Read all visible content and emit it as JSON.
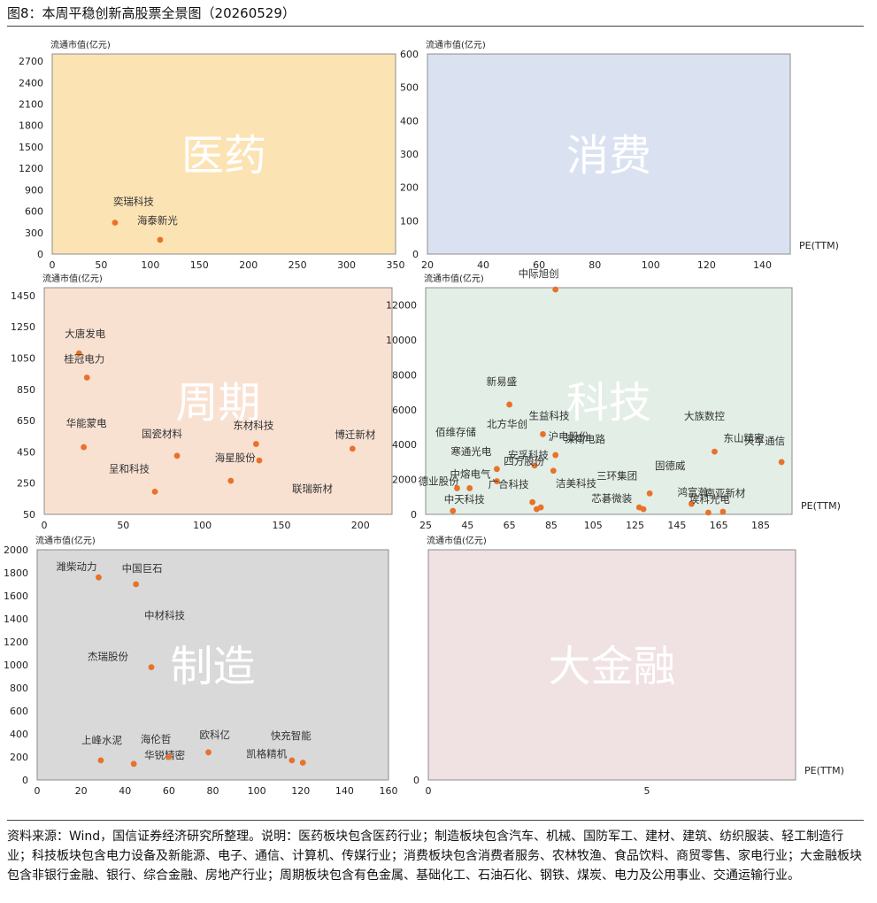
{
  "figure_title": "图8：本周平稳创新高股票全景图（20260529）",
  "source_note": "资料来源：Wind，国信证券经济研究所整理。说明：医药板块包含医药行业；制造板块包含汽车、机械、国防军工、建材、建筑、纺织服装、轻工制造行业；科技板块包含电力设备及新能源、电子、通信、计算机、传媒行业；消费板块包含消费者服务、农林牧渔、食品饮料、商贸零售、家电行业；大金融板块包含非银行金融、银行、综合金融、房地产行业；周期板块包含有色金属、基础化工、石油石化、钢铁、煤炭、电力及公用事业、交通运输行业。",
  "colors": {
    "marker": "#E8722A",
    "axis": "#555555",
    "watermark": "#ffffff"
  },
  "chart_data": [
    {
      "type": "scatter",
      "sector": "医药",
      "ylabel": "流通市值(亿元)",
      "xlabel": "",
      "bg": "#FCE3B4",
      "xlim": [
        0,
        350
      ],
      "xticks": [
        0,
        50,
        100,
        150,
        200,
        250,
        300,
        350
      ],
      "ylim": [
        0,
        2800
      ],
      "yticks": [
        0,
        300,
        600,
        900,
        1200,
        1500,
        1800,
        2100,
        2400,
        2700
      ],
      "points": [
        {
          "name": "奕瑞科技",
          "x": 64,
          "y": 440
        },
        {
          "name": "海泰新光",
          "x": 110,
          "y": 200
        }
      ]
    },
    {
      "type": "scatter",
      "sector": "消费",
      "ylabel": "流通市值(亿元)",
      "xlabel": "PE(TTM)",
      "bg": "#DAE2F2",
      "xlim": [
        20,
        150
      ],
      "xticks": [
        20,
        40,
        60,
        80,
        100,
        120,
        140
      ],
      "ylim": [
        0,
        600
      ],
      "yticks": [
        0,
        100,
        200,
        300,
        400,
        500,
        600
      ],
      "points": []
    },
    {
      "type": "scatter",
      "sector": "周期",
      "ylabel": "流通市值(亿元)",
      "xlabel": "",
      "bg": "#F9E1D2",
      "xlim": [
        0,
        220
      ],
      "xticks": [
        0,
        50,
        100,
        150,
        200
      ],
      "ylim": [
        50,
        1500
      ],
      "yticks": [
        50,
        250,
        450,
        650,
        850,
        1050,
        1250,
        1450
      ],
      "points": [
        {
          "name": "大唐发电",
          "x": 22,
          "y": 1080
        },
        {
          "name": "桂冠电力",
          "x": 27,
          "y": 925
        },
        {
          "name": "华能蒙电",
          "x": 25,
          "y": 480
        },
        {
          "name": "国瓷材料",
          "x": 84,
          "y": 425
        },
        {
          "name": "呈和科技",
          "x": 70,
          "y": 195
        },
        {
          "name": "海星股份",
          "x": 118,
          "y": 265
        },
        {
          "name": "东材科技",
          "x": 134,
          "y": 500
        },
        {
          "name": "",
          "x": 136,
          "y": 395
        },
        {
          "name": "博迁新材",
          "x": 195,
          "y": 470
        },
        {
          "name": "联瑞新材",
          "x": null,
          "y": null
        }
      ]
    },
    {
      "type": "scatter",
      "sector": "科技",
      "ylabel": "流通市值(亿元)",
      "xlabel": "PE(TTM)",
      "bg": "#E2EEE6",
      "xlim": [
        25,
        200
      ],
      "xticks": [
        25,
        45,
        65,
        85,
        105,
        125,
        145,
        165,
        185
      ],
      "ylim": [
        0,
        13000
      ],
      "yticks": [
        0,
        2000,
        4000,
        6000,
        8000,
        10000,
        12000
      ],
      "points": [
        {
          "name": "中际旭创",
          "x": 87,
          "y": 12900
        },
        {
          "name": "新易盛",
          "x": 65,
          "y": 6300
        },
        {
          "name": "生益科技",
          "x": 81,
          "y": 4600
        },
        {
          "name": "北方华创",
          "x": null,
          "y": null
        },
        {
          "name": "沪电股份",
          "x": 87,
          "y": 3400
        },
        {
          "name": "佰维存储",
          "x": null,
          "y": null
        },
        {
          "name": "深南电路",
          "x": null,
          "y": null
        },
        {
          "name": "寒通光电",
          "x": 59,
          "y": 2600
        },
        {
          "name": "德业股份",
          "x": 46,
          "y": 1500
        },
        {
          "name": "中熔电气",
          "x": 40,
          "y": 1500
        },
        {
          "name": "安孚科技",
          "x": 77,
          "y": 2800
        },
        {
          "name": "",
          "x": 59,
          "y": 1900
        },
        {
          "name": "四方股份",
          "x": 86,
          "y": 2500
        },
        {
          "name": "洁美科技",
          "x": null,
          "y": null
        },
        {
          "name": "三环集团",
          "x": 132,
          "y": 1200
        },
        {
          "name": "广合科技",
          "x": 76,
          "y": 700
        },
        {
          "name": "",
          "x": 78,
          "y": 300
        },
        {
          "name": "",
          "x": 80,
          "y": 400
        },
        {
          "name": "芯碁微装",
          "x": 127,
          "y": 400
        },
        {
          "name": "",
          "x": 129,
          "y": 300
        },
        {
          "name": "中天科技",
          "x": 38,
          "y": 200
        },
        {
          "name": "大族数控",
          "x": null,
          "y": null
        },
        {
          "name": "东山精密",
          "x": 163,
          "y": 3600
        },
        {
          "name": "天孚通信",
          "x": 195,
          "y": 3000
        },
        {
          "name": "固德威",
          "x": null,
          "y": null
        },
        {
          "name": "鸿富瀚",
          "x": 152,
          "y": 600
        },
        {
          "name": "南亚新材",
          "x": 160,
          "y": 100
        },
        {
          "name": "埃科光电",
          "x": 167,
          "y": 150
        }
      ]
    },
    {
      "type": "scatter",
      "sector": "制造",
      "ylabel": "流通市值(亿元)",
      "xlabel": "",
      "bg": "#D9D9D9",
      "xlim": [
        0,
        160
      ],
      "xticks": [
        0,
        20,
        40,
        60,
        80,
        100,
        120,
        140,
        160
      ],
      "ylim": [
        0,
        2000
      ],
      "yticks": [
        0,
        200,
        400,
        600,
        800,
        1000,
        1200,
        1400,
        1600,
        1800,
        2000
      ],
      "points": [
        {
          "name": "潍柴动力",
          "x": 28,
          "y": 1760
        },
        {
          "name": "中国巨石",
          "x": 45,
          "y": 1700
        },
        {
          "name": "中材科技",
          "x": null,
          "y": null
        },
        {
          "name": "杰瑞股份",
          "x": 52,
          "y": 980
        },
        {
          "name": "上峰水泥",
          "x": 29,
          "y": 170
        },
        {
          "name": "华锐精密",
          "x": 44,
          "y": 140
        },
        {
          "name": "海伦哲",
          "x": 60,
          "y": 200
        },
        {
          "name": "欧科亿",
          "x": 78,
          "y": 240
        },
        {
          "name": "快充智能",
          "x": 116,
          "y": 170
        },
        {
          "name": "凯格精机",
          "x": 121,
          "y": 150
        }
      ]
    },
    {
      "type": "scatter",
      "sector": "大金融",
      "ylabel": "流通市值(亿元)",
      "xlabel": "PE(TTM)",
      "bg": "#F0E1E3",
      "xlim": [
        0,
        8.4
      ],
      "xticks": [
        0,
        5
      ],
      "ylim": [
        0,
        1
      ],
      "yticks": [
        0
      ],
      "points": []
    }
  ]
}
